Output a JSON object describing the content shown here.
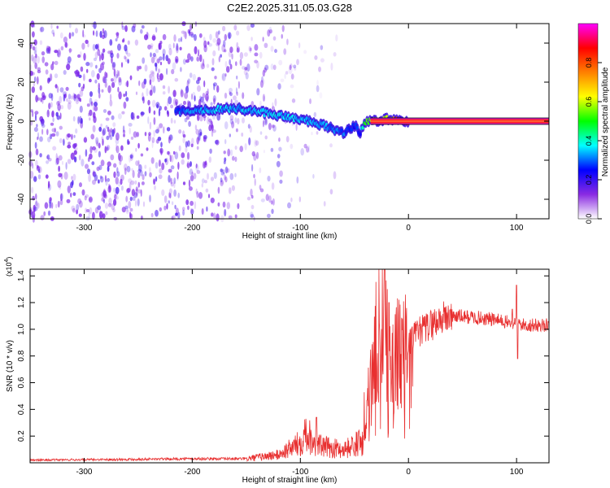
{
  "title": "C2E2.2025.311.05.03.G28",
  "chart_data": [
    {
      "type": "heatmap",
      "xlabel": "Height of straight line (km)",
      "ylabel": "Frequency (Hz)",
      "xlim": [
        -350,
        130
      ],
      "ylim": [
        -50,
        50
      ],
      "xticks": [
        -300,
        -200,
        -100,
        0,
        100
      ],
      "yticks": [
        -40,
        -20,
        0,
        20,
        40
      ],
      "xtick_labels": [
        "-300",
        "-200",
        "-100",
        "0",
        "100"
      ],
      "ytick_labels": [
        "-40",
        "-20",
        "0",
        "20",
        "40"
      ],
      "colorbar": {
        "label": "Normalized spectral amplitude",
        "range": [
          0.0,
          1.0
        ],
        "ticks": [
          0.0,
          0.2,
          0.4,
          0.6,
          0.8
        ],
        "tick_labels": [
          "0.0",
          "0.2",
          "0.4",
          "0.6",
          "0.8"
        ],
        "colors": [
          "#ffffff",
          "#8a2be2",
          "#0000ff",
          "#00ffff",
          "#00ff00",
          "#ffff00",
          "#ff8000",
          "#ff0000",
          "#ff00ff"
        ]
      },
      "signal_ridge": {
        "x": [
          -215,
          -200,
          -180,
          -160,
          -140,
          -120,
          -100,
          -80,
          -60,
          -50,
          -45,
          -40,
          -35,
          -30,
          -20,
          -10,
          0,
          130
        ],
        "frequency": [
          5,
          5.5,
          6,
          6.5,
          5,
          3,
          1,
          -2,
          -6,
          -2,
          -6,
          0,
          0,
          0,
          1,
          1,
          0,
          0
        ],
        "amplitude": [
          0.3,
          0.32,
          0.35,
          0.35,
          0.35,
          0.35,
          0.35,
          0.32,
          0.3,
          0.28,
          0.26,
          0.5,
          0.55,
          0.6,
          0.6,
          0.8,
          0.95,
          0.95
        ]
      },
      "noise_extent": {
        "dense_until": -210,
        "fades_until": -60
      }
    },
    {
      "type": "line",
      "xlabel": "Height of straight line (km)",
      "ylabel": "SNR (10 * v/v)",
      "y_exponent_label": "(x10",
      "y_exponent_power": "4",
      "y_exponent_close": ")",
      "xlim": [
        -350,
        130
      ],
      "ylim": [
        0,
        14500
      ],
      "xticks": [
        -300,
        -200,
        -100,
        0,
        100
      ],
      "yticks": [
        2000,
        4000,
        6000,
        8000,
        10000,
        12000,
        14000
      ],
      "xtick_labels": [
        "-300",
        "-200",
        "-100",
        "0",
        "100"
      ],
      "ytick_labels": [
        "0.2",
        "0.4",
        "0.6",
        "0.8",
        "1.0",
        "1.2",
        "1.4"
      ],
      "color": "#e83030",
      "envelope": {
        "x": [
          -350,
          -200,
          -150,
          -120,
          -100,
          -95,
          -90,
          -80,
          -60,
          -45,
          -40,
          -35,
          -30,
          -25,
          -20,
          -15,
          -10,
          -5,
          0,
          10,
          20,
          30,
          40,
          60,
          80,
          100,
          110,
          130
        ],
        "y": [
          200,
          300,
          300,
          600,
          1500,
          2500,
          1800,
          1200,
          1000,
          1500,
          4000,
          6000,
          9000,
          11000,
          9000,
          7500,
          8000,
          8500,
          9000,
          9800,
          10300,
          10800,
          11000,
          10900,
          10700,
          10400,
          10300,
          10300
        ]
      },
      "spikes": [
        {
          "x": -85,
          "y": 3400
        },
        {
          "x": -22,
          "y": 14500
        },
        {
          "x": -18,
          "y": 12000
        },
        {
          "x": 96,
          "y": 11500
        },
        {
          "x": 100,
          "y": 13300
        },
        {
          "x": 101,
          "y": 7800
        }
      ]
    }
  ]
}
